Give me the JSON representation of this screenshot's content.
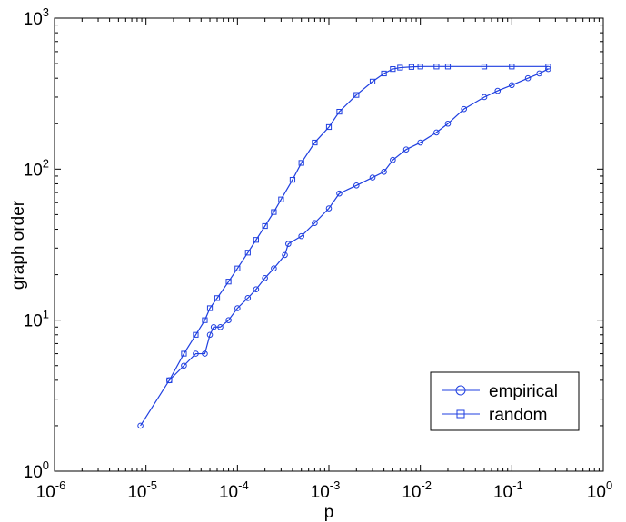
{
  "chart_data": {
    "type": "line",
    "title": "",
    "xlabel": "p",
    "ylabel": "graph order",
    "x_scale": "log",
    "y_scale": "log",
    "xlim": [
      1e-06,
      1
    ],
    "ylim": [
      1,
      1000
    ],
    "grid": false,
    "legend_position": "bottom-right",
    "x_ticks": [
      {
        "base": "10",
        "exp": "-6",
        "value": 1e-06
      },
      {
        "base": "10",
        "exp": "-5",
        "value": 1e-05
      },
      {
        "base": "10",
        "exp": "-4",
        "value": 0.0001
      },
      {
        "base": "10",
        "exp": "-3",
        "value": 0.001
      },
      {
        "base": "10",
        "exp": "-2",
        "value": 0.01
      },
      {
        "base": "10",
        "exp": "-1",
        "value": 0.1
      },
      {
        "base": "10",
        "exp": "0",
        "value": 1
      }
    ],
    "y_ticks": [
      {
        "base": "10",
        "exp": "0",
        "value": 1
      },
      {
        "base": "10",
        "exp": "1",
        "value": 10
      },
      {
        "base": "10",
        "exp": "2",
        "value": 100
      },
      {
        "base": "10",
        "exp": "3",
        "value": 1000
      }
    ],
    "series": [
      {
        "name": "empirical",
        "marker": "circle",
        "color": "#1f3fe0",
        "x": [
          8.7e-06,
          1.8e-05,
          2.6e-05,
          3.5e-05,
          4.4e-05,
          5e-05,
          5.5e-05,
          6.5e-05,
          8e-05,
          0.0001,
          0.00013,
          0.00016,
          0.0002,
          0.00025,
          0.00033,
          0.00036,
          0.0005,
          0.0007,
          0.001,
          0.0013,
          0.002,
          0.003,
          0.004,
          0.005,
          0.007,
          0.01,
          0.015,
          0.02,
          0.03,
          0.05,
          0.07,
          0.1,
          0.15,
          0.2,
          0.25
        ],
        "y": [
          2,
          4,
          5,
          6,
          6,
          8,
          9,
          9,
          10,
          12,
          14,
          16,
          19,
          22,
          27,
          32,
          36,
          44,
          55,
          69,
          78,
          88,
          96,
          115,
          135,
          150,
          175,
          200,
          250,
          300,
          330,
          360,
          400,
          430,
          460
        ]
      },
      {
        "name": "random",
        "marker": "square",
        "color": "#1f3fe0",
        "x": [
          1.8e-05,
          2.6e-05,
          3.5e-05,
          4.4e-05,
          5e-05,
          6e-05,
          8e-05,
          0.0001,
          0.00013,
          0.00016,
          0.0002,
          0.00025,
          0.0003,
          0.0004,
          0.0005,
          0.0007,
          0.001,
          0.0013,
          0.002,
          0.003,
          0.004,
          0.005,
          0.006,
          0.008,
          0.01,
          0.015,
          0.02,
          0.05,
          0.1,
          0.25
        ],
        "y": [
          4,
          6,
          8,
          10,
          12,
          14,
          18,
          22,
          28,
          34,
          42,
          52,
          63,
          85,
          110,
          150,
          190,
          240,
          310,
          380,
          430,
          460,
          470,
          475,
          478,
          478,
          478,
          478,
          478,
          478
        ]
      }
    ]
  }
}
